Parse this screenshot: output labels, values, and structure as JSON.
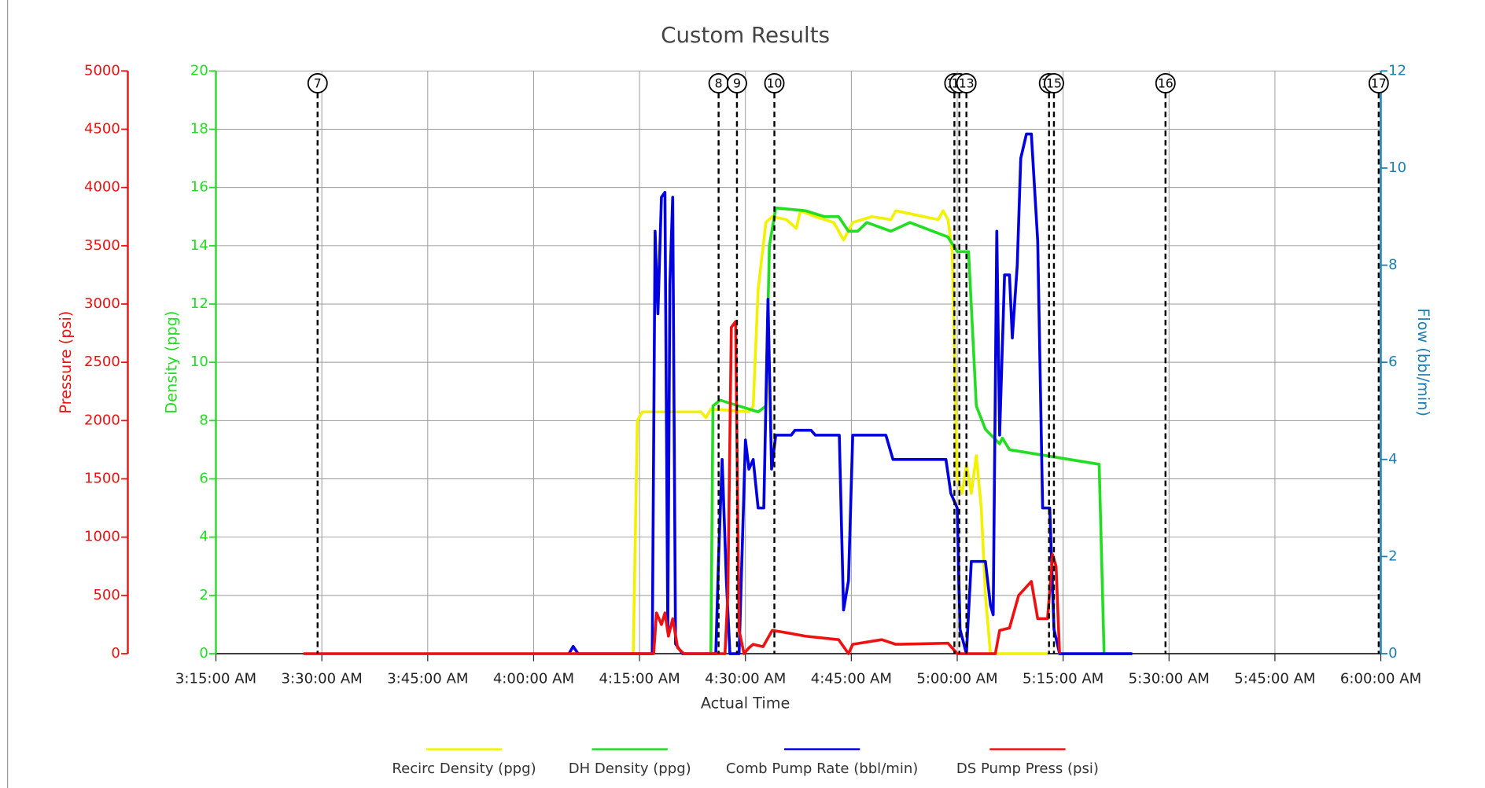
{
  "chart_data": {
    "type": "line",
    "title": "Custom Results",
    "xlabel": "Actual Time",
    "xlim": [
      195,
      360
    ],
    "xticks": [
      {
        "value": 195,
        "label": "3:15:00 AM"
      },
      {
        "value": 210,
        "label": "3:30:00 AM"
      },
      {
        "value": 225,
        "label": "3:45:00 AM"
      },
      {
        "value": 240,
        "label": "4:00:00 AM"
      },
      {
        "value": 255,
        "label": "4:15:00 AM"
      },
      {
        "value": 270,
        "label": "4:30:00 AM"
      },
      {
        "value": 285,
        "label": "4:45:00 AM"
      },
      {
        "value": 300,
        "label": "5:00:00 AM"
      },
      {
        "value": 315,
        "label": "5:15:00 AM"
      },
      {
        "value": 330,
        "label": "5:30:00 AM"
      },
      {
        "value": 345,
        "label": "5:45:00 AM"
      },
      {
        "value": 360,
        "label": "6:00:00 AM"
      }
    ],
    "ylabel": "Density (ppg)",
    "ylim": [
      0,
      20
    ],
    "yticks": [
      0,
      2,
      4,
      6,
      8,
      10,
      12,
      14,
      16,
      18,
      20
    ],
    "y2label": "Flow (bbl/min)",
    "y2lim": [
      0,
      12
    ],
    "y2ticks": [
      0,
      2,
      4,
      6,
      8,
      10,
      12
    ],
    "y3label": "Pressure (psi)",
    "y3lim": [
      0,
      5000
    ],
    "y3ticks": [
      0,
      500,
      1000,
      1500,
      2000,
      2500,
      3000,
      3500,
      4000,
      4500,
      5000
    ],
    "grid": true,
    "legend": "bottom",
    "events": [
      {
        "label": "7",
        "x": 209.4
      },
      {
        "label": "8",
        "x": 266.2
      },
      {
        "label": "9",
        "x": 268.8
      },
      {
        "label": "10",
        "x": 274.1
      },
      {
        "label": "11",
        "x": 299.6
      },
      {
        "label": "12",
        "x": 300.3
      },
      {
        "label": "13",
        "x": 301.3
      },
      {
        "label": "14",
        "x": 313.0
      },
      {
        "label": "15",
        "x": 313.7
      },
      {
        "label": "16",
        "x": 329.5
      },
      {
        "label": "17",
        "x": 359.7
      }
    ],
    "series": [
      {
        "name": "Recirc Density (ppg)",
        "color": "#f2f200",
        "axis": "y",
        "x": [
          254.1,
          254.7,
          255.4,
          257.0,
          263.7,
          264.4,
          265.1,
          270.5,
          271.1,
          271.8,
          272.9,
          273.8,
          275.8,
          277.2,
          277.8,
          279.9,
          282.5,
          283.9,
          285.2,
          287.9,
          290.6,
          291.3,
          297.3,
          298.0,
          298.7,
          299.3,
          300.0,
          300.7,
          301.3,
          302.0,
          302.7,
          303.4,
          304.0,
          304.7,
          312.8
        ],
        "values": [
          0,
          8.0,
          8.3,
          8.3,
          8.3,
          8.1,
          8.4,
          8.3,
          8.5,
          12.5,
          14.8,
          15.0,
          14.9,
          14.6,
          15.2,
          15.0,
          14.8,
          14.2,
          14.8,
          15.0,
          14.9,
          15.2,
          14.9,
          15.2,
          14.9,
          13.8,
          6.0,
          5.5,
          6.5,
          5.5,
          6.8,
          5.0,
          2.0,
          0,
          0
        ]
      },
      {
        "name": "DH Density (ppg)",
        "color": "#22dd22",
        "axis": "y",
        "x": [
          265.1,
          265.4,
          266.4,
          269.1,
          271.8,
          272.9,
          273.4,
          274.3,
          278.5,
          281.2,
          283.2,
          284.6,
          285.9,
          287.2,
          290.6,
          293.3,
          298.7,
          300.0,
          301.6,
          302.7,
          304.0,
          306.0,
          306.4,
          307.4,
          320.1,
          320.8
        ],
        "values": [
          0,
          8.5,
          8.7,
          8.5,
          8.3,
          8.5,
          14.0,
          15.3,
          15.2,
          15.0,
          15.0,
          14.5,
          14.5,
          14.8,
          14.5,
          14.8,
          14.3,
          13.8,
          13.8,
          8.5,
          7.7,
          7.2,
          7.4,
          7.0,
          6.5,
          0
        ]
      },
      {
        "name": "Comb Pump Rate (bbl/min)",
        "color": "#0000e0",
        "axis": "y2",
        "x": [
          245.0,
          245.6,
          246.3,
          256.8,
          257.2,
          257.6,
          258.1,
          258.6,
          259.0,
          259.3,
          259.7,
          260.1,
          261.1,
          265.8,
          266.2,
          266.7,
          267.3,
          267.8,
          269.1,
          270.0,
          270.5,
          271.1,
          271.8,
          272.6,
          273.2,
          273.7,
          274.3,
          276.5,
          277.0,
          279.3,
          279.9,
          283.3,
          283.9,
          284.6,
          285.2,
          289.9,
          290.9,
          298.4,
          299.1,
          300.0,
          300.4,
          301.3,
          302.0,
          304.0,
          304.7,
          305.1,
          305.6,
          306.0,
          306.7,
          307.4,
          307.8,
          308.5,
          309.0,
          309.8,
          310.5,
          311.4,
          312.1,
          313.1,
          313.7,
          314.5,
          324.8
        ],
        "values": [
          0,
          0.15,
          0,
          0,
          8.7,
          7.0,
          9.4,
          9.5,
          0.5,
          7.6,
          9.4,
          0.2,
          0,
          0,
          2.0,
          4.0,
          1.5,
          0,
          0,
          4.4,
          3.8,
          4.0,
          3.0,
          3.0,
          7.3,
          3.8,
          4.5,
          4.5,
          4.6,
          4.6,
          4.5,
          4.5,
          0.9,
          1.5,
          4.5,
          4.5,
          4.0,
          4.0,
          3.3,
          3.0,
          0.5,
          0,
          1.9,
          1.9,
          1.0,
          0.8,
          8.7,
          4.5,
          7.8,
          7.8,
          6.5,
          8.0,
          10.2,
          10.7,
          10.7,
          8.5,
          3.0,
          3.0,
          0.5,
          0,
          0
        ]
      },
      {
        "name": "DS Pump Press (psi)",
        "color": "#ee1111",
        "axis": "y3",
        "x": [
          207.4,
          257.0,
          257.4,
          258.1,
          258.6,
          259.1,
          259.7,
          260.4,
          261.3,
          267.1,
          267.5,
          268.0,
          268.6,
          269.1,
          269.8,
          270.5,
          271.1,
          272.5,
          273.8,
          275.8,
          278.5,
          283.2,
          284.6,
          285.2,
          289.3,
          291.3,
          298.7,
          300.0,
          305.4,
          306.0,
          307.4,
          308.7,
          310.5,
          311.4,
          312.8,
          313.5,
          314.0,
          314.5
        ],
        "values": [
          0,
          0,
          350,
          250,
          350,
          150,
          300,
          50,
          0,
          0,
          500,
          2800,
          2850,
          200,
          0,
          50,
          80,
          60,
          200,
          180,
          150,
          120,
          0,
          80,
          120,
          80,
          90,
          0,
          0,
          200,
          220,
          500,
          620,
          300,
          300,
          850,
          750,
          0
        ]
      }
    ]
  }
}
